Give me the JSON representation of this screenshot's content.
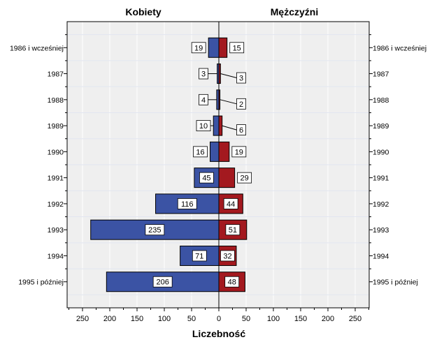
{
  "chart_data": {
    "type": "bar",
    "orientation": "horizontal",
    "layout": "population-pyramid",
    "categories": [
      "1986 i wcześniej",
      "1987",
      "1988",
      "1989",
      "1990",
      "1991",
      "1992",
      "1993",
      "1994",
      "1995 i później"
    ],
    "series": [
      {
        "name": "Kobiety",
        "side": "left",
        "color": "#3b53a4",
        "values": [
          19,
          3,
          4,
          10,
          16,
          45,
          116,
          235,
          71,
          206
        ]
      },
      {
        "name": "Mężczyźni",
        "side": "right",
        "color": "#a3191f",
        "values": [
          15,
          3,
          2,
          6,
          19,
          29,
          44,
          51,
          32,
          48
        ]
      }
    ],
    "xlabel": "Liczebność",
    "xlim": [
      0,
      275
    ],
    "x_ticks": [
      250,
      200,
      150,
      100,
      50,
      0,
      50,
      100,
      150,
      200,
      250
    ],
    "grid": true,
    "background": "#efefef"
  }
}
